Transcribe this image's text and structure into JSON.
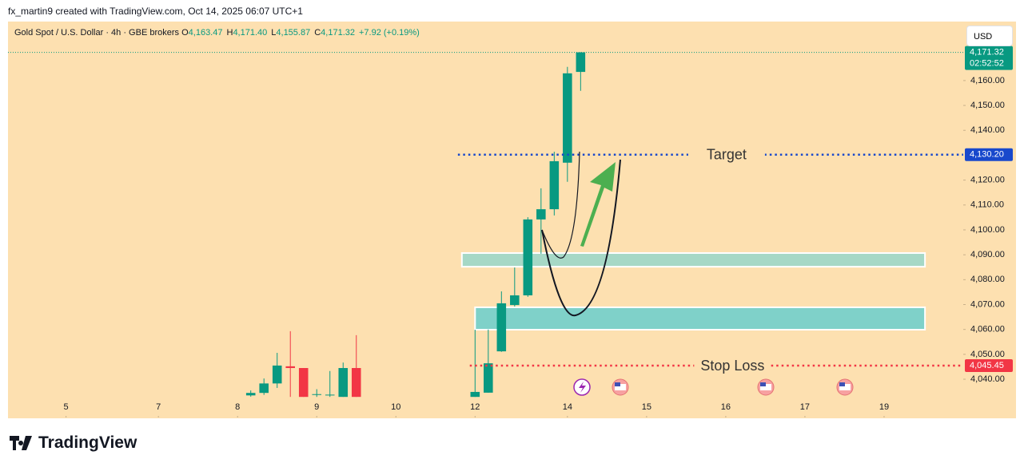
{
  "header": {
    "credit": "fx_martin9 created with TradingView.com, Oct 14, 2025 06:07 UTC+1",
    "brand": "TradingView",
    "currency": "USD"
  },
  "chart_data": {
    "type": "candlestick",
    "symbol": "Gold Spot / U.S. Dollar · 4h · GBE brokers",
    "ohlc_labels": [
      {
        "key": "O",
        "text": "4,163.47"
      },
      {
        "key": "H",
        "text": "4,171.40"
      },
      {
        "key": "L",
        "text": "4,155.87"
      },
      {
        "key": "C",
        "text": "4,171.32"
      },
      {
        "key": "",
        "text": "+7.92 (+0.19%)"
      }
    ],
    "x": [
      18,
      19,
      20,
      21,
      22,
      23,
      24,
      25,
      26,
      35,
      36,
      37,
      38,
      39,
      40,
      41,
      42,
      43
    ],
    "open": [
      4033.5,
      4034.5,
      4038.3,
      4045.2,
      4044.5,
      4034.0,
      4033.5,
      4032.9,
      4044.5,
      4032.9,
      4034.6,
      4051.2,
      4069.8,
      4073.7,
      4104.2,
      4108.3,
      4127.0,
      4163.47
    ],
    "high": [
      4035.5,
      4040.3,
      4050.6,
      4059.3,
      4044.5,
      4036.0,
      4043.3,
      4046.7,
      4057.7,
      4059.9,
      4060.0,
      4075.3,
      4084.9,
      4105.1,
      4116.7,
      4131.4,
      4165.5,
      4171.4
    ],
    "low": [
      4033.0,
      4033.7,
      4036.5,
      4032.9,
      4032.9,
      4032.9,
      4032.9,
      4032.9,
      4032.9,
      4032.9,
      4034.6,
      4051.0,
      4069.2,
      4073.1,
      4090.4,
      4105.8,
      4119.3,
      4155.87
    ],
    "close": [
      4034.5,
      4038.3,
      4045.5,
      4044.5,
      4032.9,
      4034.0,
      4033.8,
      4044.5,
      4032.9,
      4034.9,
      4046.4,
      4070.5,
      4073.7,
      4104.2,
      4108.3,
      4127.6,
      4162.9,
      4171.32
    ],
    "up_color": "#089981",
    "down_color": "#f23645",
    "xlim": [
      -0.4,
      72
    ],
    "ylim": [
      4024.3,
      4183.7
    ],
    "xticks": [
      {
        "value": 4,
        "label": "5"
      },
      {
        "value": 11,
        "label": "7"
      },
      {
        "value": 17,
        "label": "8"
      },
      {
        "value": 23,
        "label": "9"
      },
      {
        "value": 29,
        "label": "10"
      },
      {
        "value": 35,
        "label": "12"
      },
      {
        "value": 42,
        "label": "14"
      },
      {
        "value": 48,
        "label": "15"
      },
      {
        "value": 54,
        "label": "16"
      },
      {
        "value": 60,
        "label": "17"
      },
      {
        "value": 66,
        "label": "19"
      }
    ],
    "yticks": [
      {
        "value": 4040,
        "label": "4,040.00"
      },
      {
        "value": 4050,
        "label": "4,050.00"
      },
      {
        "value": 4060,
        "label": "4,060.00"
      },
      {
        "value": 4070,
        "label": "4,070.00"
      },
      {
        "value": 4080,
        "label": "4,080.00"
      },
      {
        "value": 4090,
        "label": "4,090.00"
      },
      {
        "value": 4100,
        "label": "4,100.00"
      },
      {
        "value": 4110,
        "label": "4,110.00"
      },
      {
        "value": 4120,
        "label": "4,120.00"
      },
      {
        "value": 4140,
        "label": "4,140.00"
      },
      {
        "value": 4150,
        "label": "4,150.00"
      },
      {
        "value": 4160,
        "label": "4,160.00"
      }
    ],
    "last_price": {
      "value": 4171.32,
      "label": "4,171.32",
      "countdown": "02:52:52",
      "color": "#089981"
    },
    "lines": [
      {
        "name": "Target",
        "value": 4130.2,
        "label": "4,130.20",
        "color": "#1848cc",
        "x_start": 33.7
      },
      {
        "name": "Stop Loss",
        "value": 4045.45,
        "label": "4,045.45",
        "color": "#f23645",
        "x_start": 34.6
      }
    ],
    "zones": [
      {
        "top": 4090.7,
        "bottom": 4085.2,
        "x_start": 34.0,
        "x_end": 69.1,
        "color": "#a6d8c6"
      },
      {
        "top": 4068.9,
        "bottom": 4059.9,
        "x_start": 35.0,
        "x_end": 69.1,
        "color": "#7fd1c9"
      }
    ]
  }
}
